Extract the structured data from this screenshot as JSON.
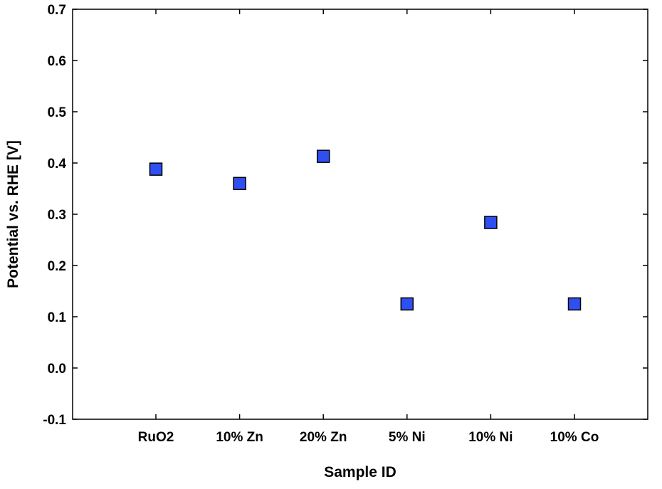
{
  "chart_data": {
    "type": "scatter",
    "title": "",
    "xlabel": "Sample ID",
    "ylabel": "Potential vs. RHE [V]",
    "categories": [
      "RuO2",
      "10% Zn",
      "20% Zn",
      "5% Ni",
      "10% Ni",
      "10% Co"
    ],
    "values": [
      0.388,
      0.36,
      0.413,
      0.125,
      0.284,
      0.125
    ],
    "ylim": [
      -0.1,
      0.7
    ],
    "yticks": [
      -0.1,
      0.0,
      0.1,
      0.2,
      0.3,
      0.4,
      0.5,
      0.6,
      0.7
    ],
    "grid": false,
    "legend": "none",
    "marker": "square",
    "marker_color": "#2f4ff0",
    "marker_edge_color": "#000000"
  }
}
